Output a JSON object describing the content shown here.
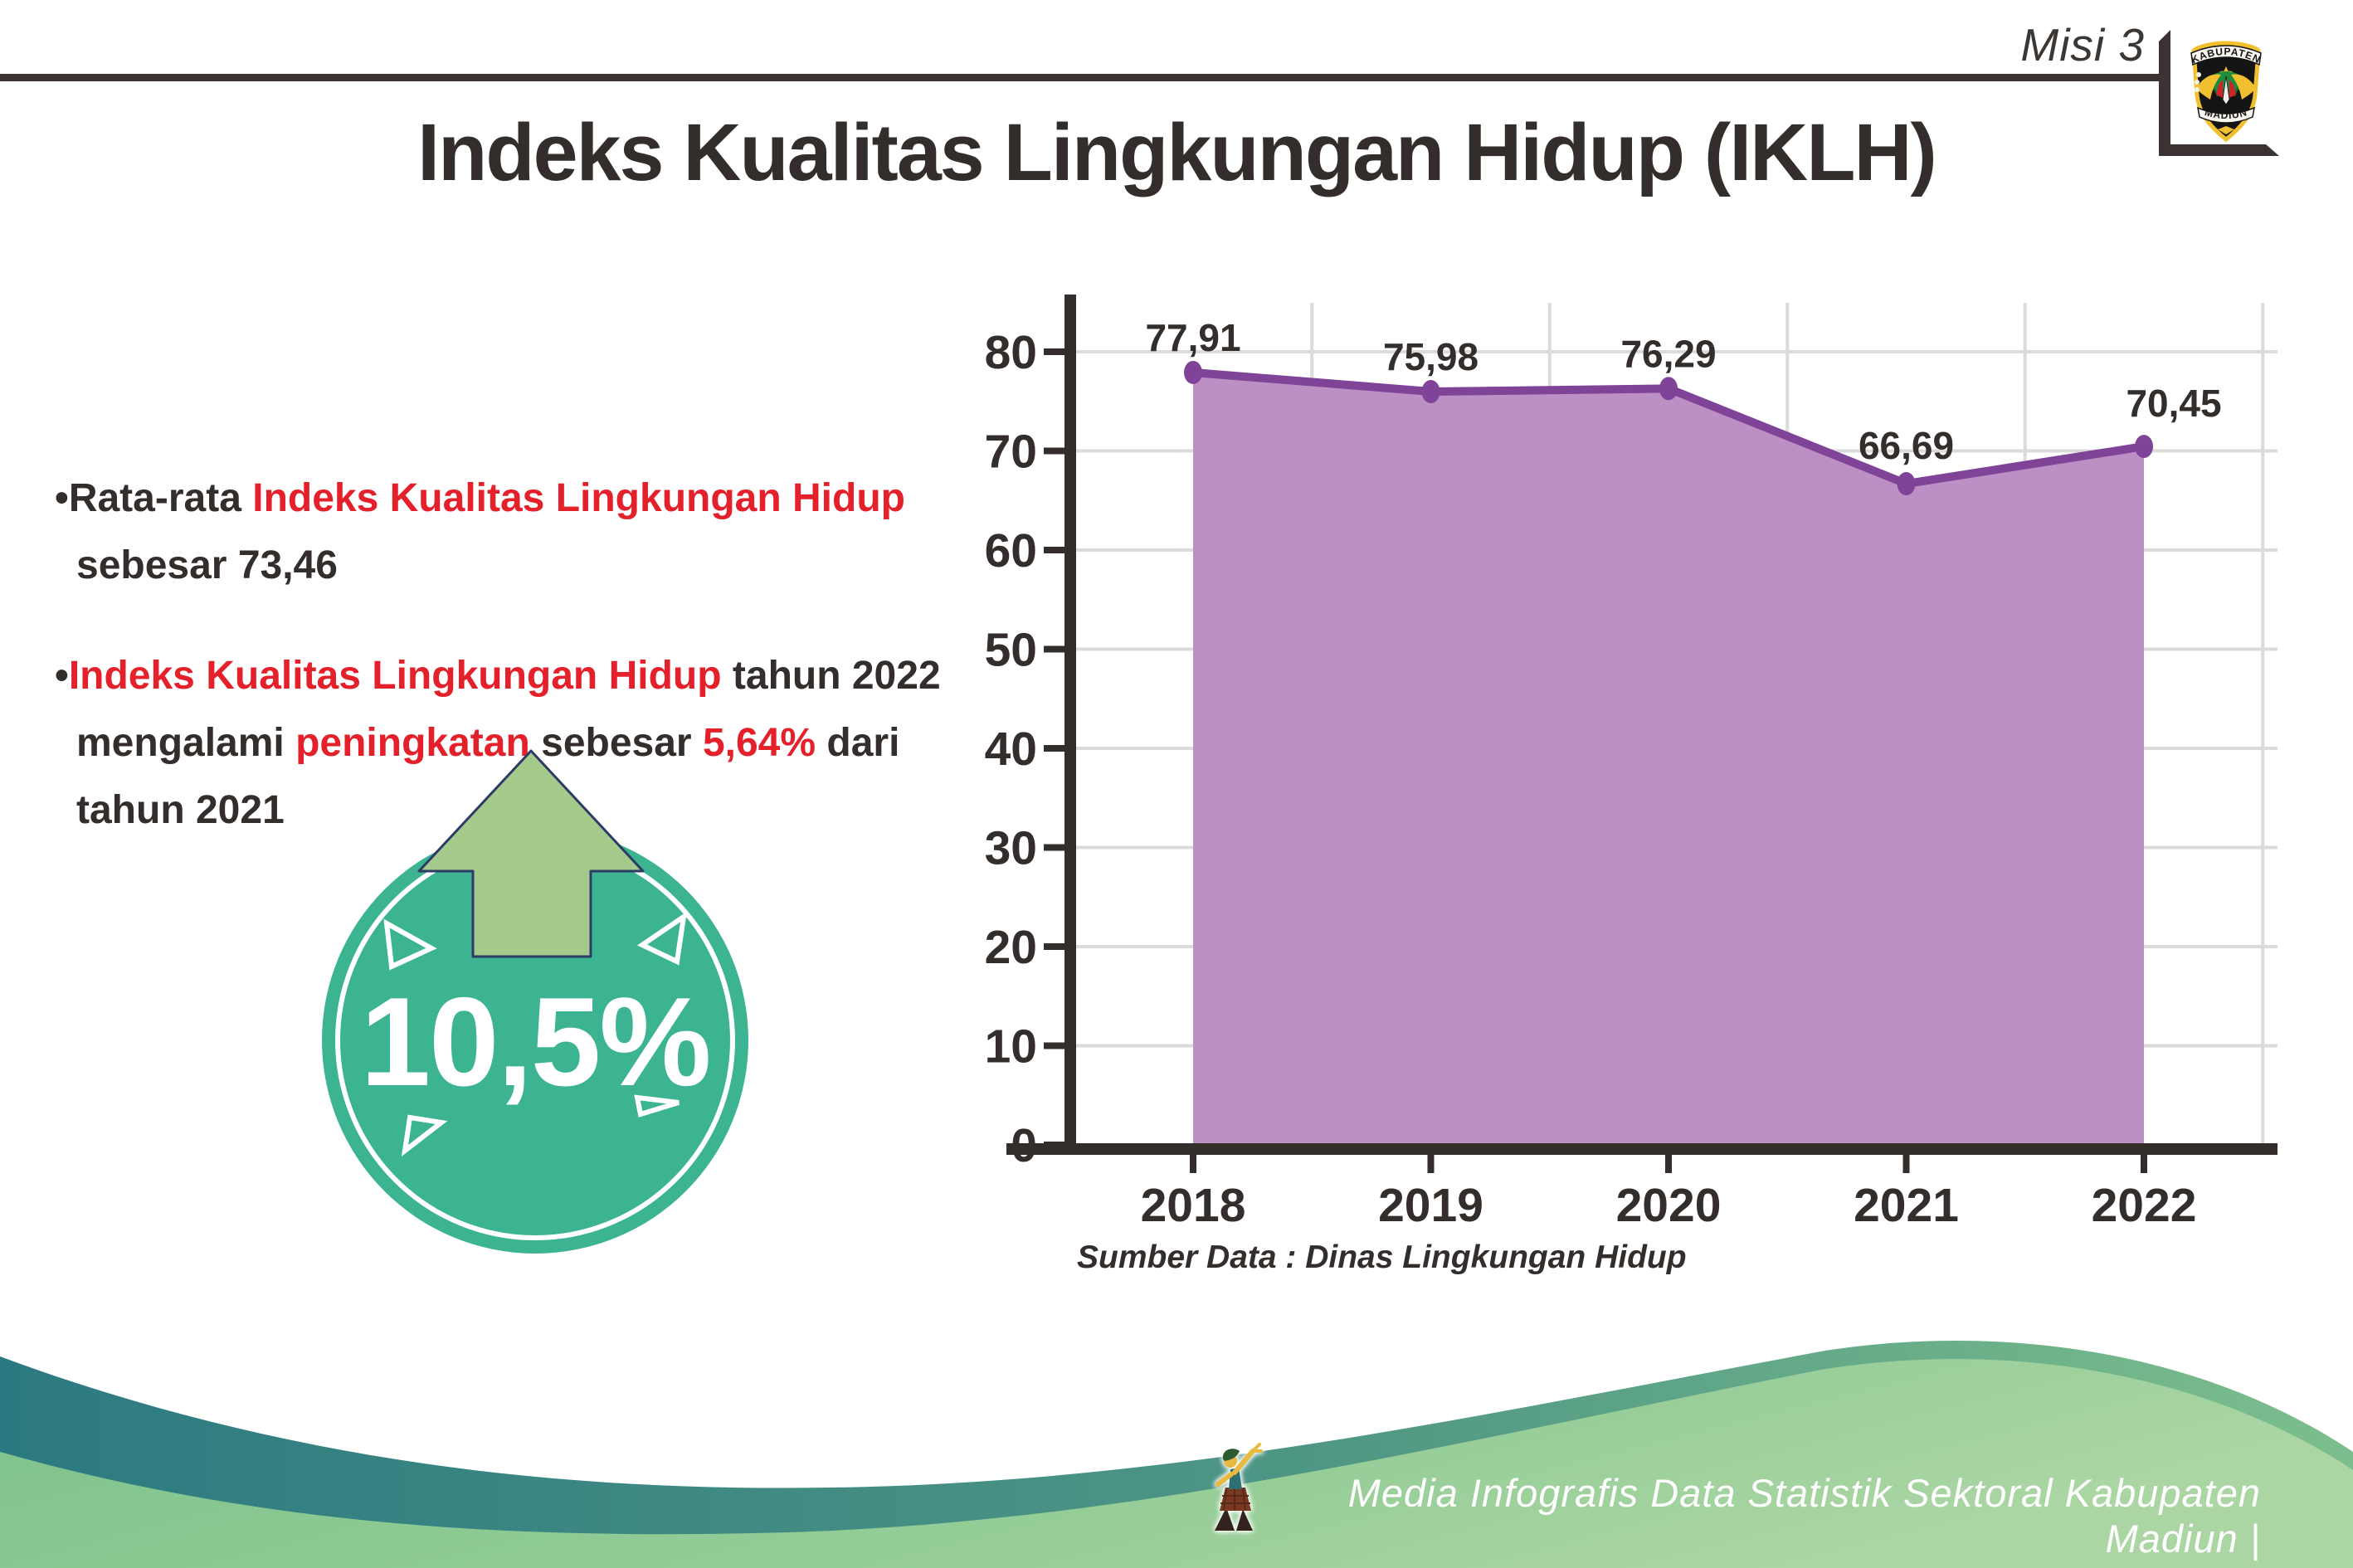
{
  "page": {
    "misi": "Misi 3",
    "title": "Indeks Kualitas Lingkungan Hidup (IKLH)"
  },
  "logo": {
    "top": "KABUPATEN",
    "bottom": "MADIUN"
  },
  "bullets": {
    "bullet_char": "•",
    "b1": {
      "black1": "Rata-rata ",
      "red1": "Indeks Kualitas Lingkungan Hidup",
      "line2": "sebesar 73,46"
    },
    "b2": {
      "red1": "Indeks Kualitas Lingkungan Hidup",
      "black1": " tahun 2022",
      "l2_black1": "mengalami ",
      "l2_red1": "peningkatan",
      "l2_black2": " sebesar ",
      "l2_red2": "5,64%",
      "l2_black3": " dari",
      "line3": "tahun 2021"
    }
  },
  "badge": {
    "value": "10,5%"
  },
  "chart_data": {
    "type": "area",
    "title": "Indeks Kualitas Lingkungan Hidup (IKLH)",
    "categories": [
      "2018",
      "2019",
      "2020",
      "2021",
      "2022"
    ],
    "values": [
      77.91,
      75.98,
      76.29,
      66.69,
      70.45
    ],
    "point_labels": [
      "77,91",
      "75,98",
      "76,29",
      "66,69",
      "70,45"
    ],
    "series_name": "IKLH",
    "yticks": [
      0,
      10,
      20,
      30,
      40,
      50,
      60,
      70,
      80
    ],
    "ylim": [
      0,
      85
    ],
    "xlabel": "",
    "ylabel": "",
    "grid": true,
    "legend": false,
    "colors": {
      "line": "#7F4398",
      "fill": "#BC90C5",
      "marker": "#7F4398",
      "axis": "#332D2B",
      "grid": "#DBDBDB",
      "label": "#332D2B"
    }
  },
  "source": "Sumber Data : Dinas Lingkungan Hidup",
  "footer": {
    "text": "Media Infografis Data Statistik Sektoral Kabupaten Madiun |"
  },
  "colors": {
    "red_text": "#E4202B",
    "dark_text": "#332D2B",
    "badge_teal": "#3CB492",
    "arrow_green": "#A5CB8C",
    "wave_teal": "#2C7A81",
    "wave_green": "#8FCB93"
  }
}
